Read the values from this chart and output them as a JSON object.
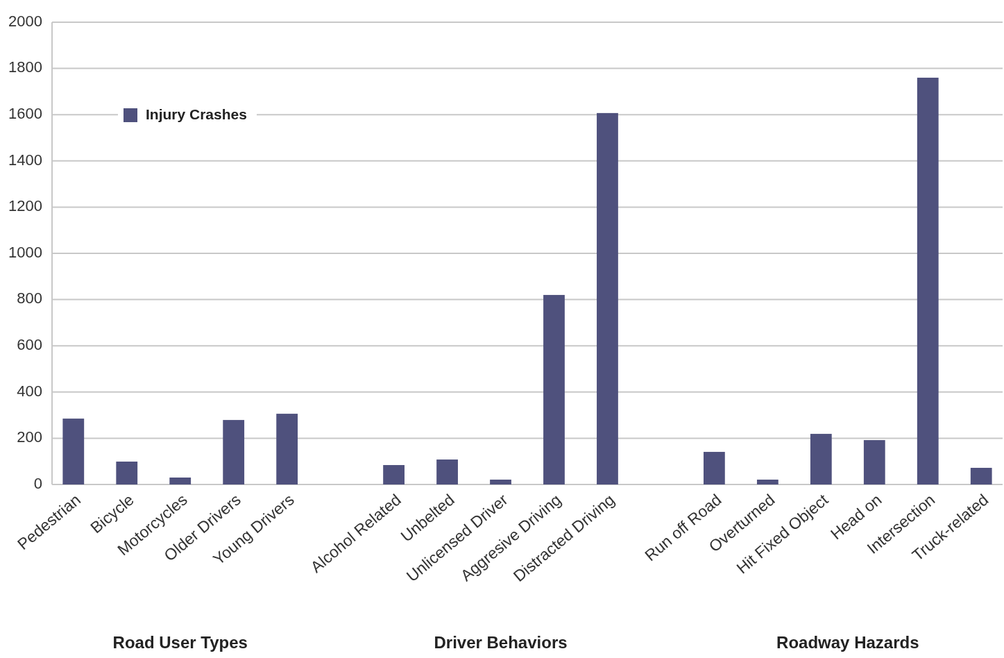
{
  "chart_data": {
    "type": "bar",
    "categories": [
      "Pedestrian",
      "Bicycle",
      "Motorcycles",
      "Older Drivers",
      "Young Drivers",
      null,
      "Alcohol Related",
      "Unbelted",
      "Unlicensed Driver",
      "Aggresive Driving",
      "Distracted Driving",
      null,
      "Run off Road",
      "Overturned",
      "Hit Fixed Object",
      "Head on",
      "Intersection",
      "Truck-related"
    ],
    "series": [
      {
        "name": "Injury Crashes",
        "color": "#4f517d",
        "values": [
          285,
          99,
          30,
          279,
          306,
          null,
          84,
          108,
          21,
          820,
          1607,
          null,
          141,
          21,
          219,
          192,
          1760,
          72
        ]
      }
    ],
    "ylim": [
      0,
      2000
    ],
    "yticks": [
      0,
      200,
      400,
      600,
      800,
      1000,
      1200,
      1400,
      1600,
      1800,
      2000
    ],
    "grid": "y",
    "legend": "top left",
    "annotations": [
      "Road User Types",
      "Driver Behaviors",
      "Roadway Hazards"
    ]
  }
}
